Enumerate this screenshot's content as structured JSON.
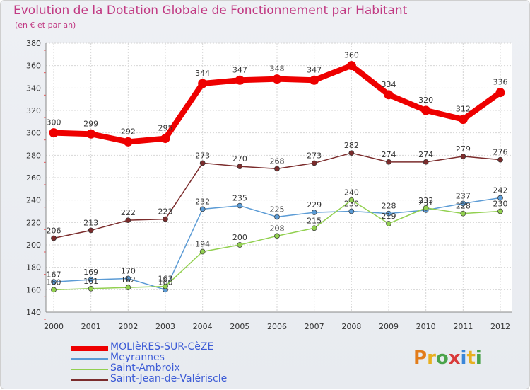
{
  "header": {
    "title": "Evolution de la Dotation Globale de Fonctionnement par Habitant",
    "subtitle": "(en € et par an)"
  },
  "logo": {
    "text": "Proxiti",
    "colors": [
      "#e27c1a",
      "#e8b020",
      "#4aa34a",
      "#d93a3a",
      "#3a86d9",
      "#e8b020",
      "#4aa34a"
    ]
  },
  "chart_data": {
    "type": "line",
    "x": [
      "2000",
      "2001",
      "2002",
      "2003",
      "2004",
      "2005",
      "2006",
      "2007",
      "2008",
      "2009",
      "2010",
      "2011",
      "2012"
    ],
    "ylim": [
      140,
      380
    ],
    "yticks": [
      140,
      160,
      180,
      200,
      220,
      240,
      260,
      280,
      300,
      320,
      340,
      360,
      380
    ],
    "grid": true,
    "legend_position": "bottom-left",
    "series": [
      {
        "name": "MOLIèRES-SUR-CèZE",
        "color": "#ee0000",
        "emphasis": true,
        "values": [
          300,
          299,
          292,
          295,
          344,
          347,
          348,
          347,
          360,
          334,
          320,
          312,
          336
        ]
      },
      {
        "name": "Meyrannes",
        "color": "#5b9bd5",
        "emphasis": false,
        "values": [
          167,
          169,
          170,
          160,
          232,
          235,
          225,
          229,
          230,
          228,
          231,
          237,
          242
        ]
      },
      {
        "name": "Saint-Ambroix",
        "color": "#92d050",
        "emphasis": false,
        "values": [
          160,
          161,
          162,
          163,
          194,
          200,
          208,
          215,
          240,
          219,
          233,
          228,
          230
        ]
      },
      {
        "name": "Saint-Jean-de-Valériscle",
        "color": "#7b2c2c",
        "emphasis": false,
        "values": [
          206,
          213,
          222,
          223,
          273,
          270,
          268,
          273,
          282,
          274,
          274,
          279,
          276
        ]
      }
    ]
  }
}
